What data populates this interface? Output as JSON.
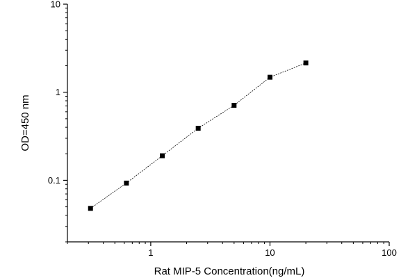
{
  "chart_data": {
    "type": "scatter",
    "title": "",
    "xlabel": "Rat MIP-5 Concentration(ng/mL)",
    "ylabel": "OD=450 nm",
    "x_scale": "log",
    "y_scale": "log",
    "xlim": [
      0.2,
      100
    ],
    "ylim": [
      0.02,
      10
    ],
    "x_ticks": [
      1,
      10,
      100
    ],
    "x_tick_labels": [
      "1",
      "10",
      "100"
    ],
    "y_ticks": [
      0.1,
      1,
      10
    ],
    "y_tick_labels": [
      "0.1",
      "1",
      "10"
    ],
    "grid": false,
    "legend": "none",
    "series": [
      {
        "marker": "square",
        "line": "dashed",
        "color": "#000000",
        "x": [
          0.3125,
          0.625,
          1.25,
          2.5,
          5,
          10,
          20
        ],
        "y": [
          0.048,
          0.093,
          0.19,
          0.39,
          0.71,
          1.48,
          2.15
        ]
      }
    ]
  }
}
